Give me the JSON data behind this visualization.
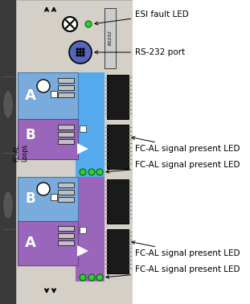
{
  "bg_color": "#d4d0c8",
  "dark_gray": "#3a3a3a",
  "light_gray": "#c0c0c0",
  "blue": "#55aaee",
  "purple": "#9966bb",
  "white": "#ffffff",
  "black": "#000000",
  "green_led": "#33cc33",
  "connector_black": "#1a1a1a",
  "panel_edge": "#999999",
  "labels": {
    "esi": "ESI fault LED",
    "rs232": "RS-232 port",
    "fcal1": "FC-AL signal present LED",
    "fcal2": "FC-AL signal present LED",
    "fcal3": "FC-AL signal present LED",
    "fcal4": "FC-AL signal present LED"
  },
  "label_fontsize": 7.5,
  "side_text": "FC-AL\nLoops"
}
